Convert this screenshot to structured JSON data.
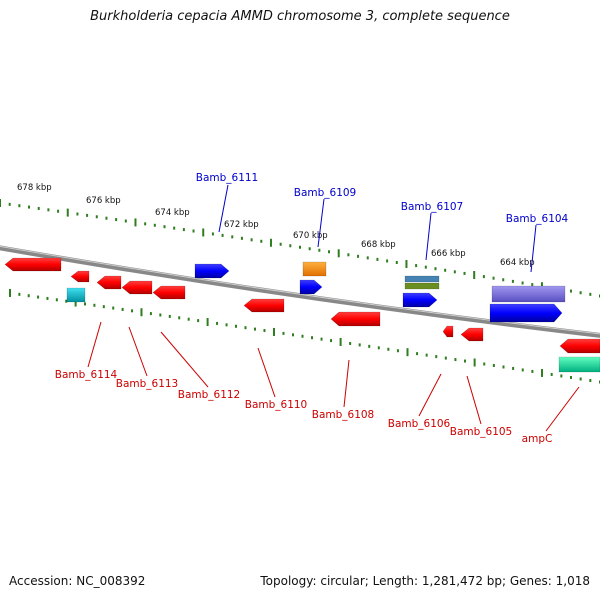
{
  "title": "Burkholderia cepacia AMMD chromosome 3, complete sequence",
  "footer": {
    "accession": "Accession: NC_008392",
    "summary": "Topology: circular; Length: 1,281,472 bp; Genes: 1,018"
  },
  "scale_labels": [
    "678 kbp",
    "676 kbp",
    "674 kbp",
    "672 kbp",
    "670 kbp",
    "668 kbp",
    "666 kbp",
    "664 kbp"
  ],
  "genes_forward": [
    {
      "label": "Bamb_6111",
      "color": "#0000cc"
    },
    {
      "label": "Bamb_6109",
      "color": "#0000cc"
    },
    {
      "label": "Bamb_6107",
      "color": "#0000cc"
    },
    {
      "label": "Bamb_6104",
      "color": "#0000cc"
    }
  ],
  "genes_reverse": [
    {
      "label": "Bamb_6114",
      "color": "#cc0000"
    },
    {
      "label": "Bamb_6113",
      "color": "#cc0000"
    },
    {
      "label": "Bamb_6112",
      "color": "#cc0000"
    },
    {
      "label": "Bamb_6110",
      "color": "#cc0000"
    },
    {
      "label": "Bamb_6108",
      "color": "#cc0000"
    },
    {
      "label": "Bamb_6106",
      "color": "#cc0000"
    },
    {
      "label": "Bamb_6105",
      "color": "#cc0000"
    },
    {
      "label": "ampC",
      "color": "#cc0000"
    }
  ],
  "colors": {
    "backbone": "#888888",
    "tick": "#2e7d1e",
    "forward_gene": "#0000ff",
    "reverse_gene": "#ff0000",
    "orange_gene": "#ff8c00",
    "cyan_gene": "#00b8d0",
    "teal_gene": "#00e0a0",
    "purple_gene": "#7b6fd6",
    "olive_gene": "#6b8e23",
    "steel_gene": "#4682b4"
  }
}
